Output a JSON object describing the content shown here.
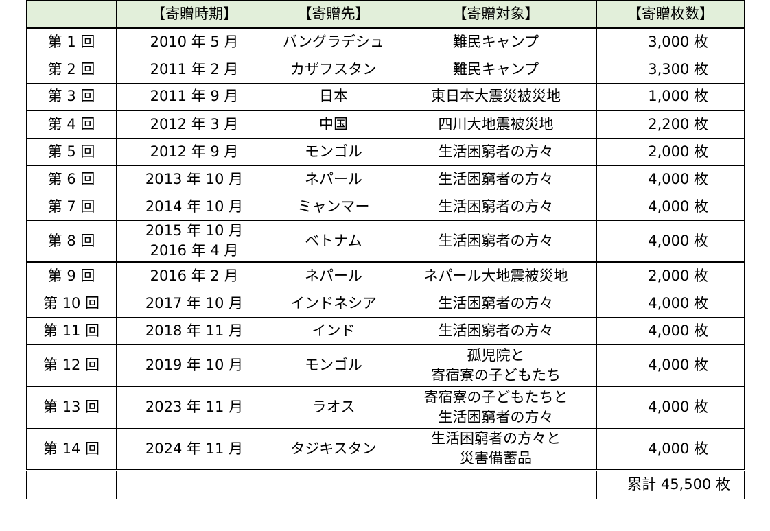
{
  "header": {
    "round": "",
    "period": "【寄贈時期】",
    "destination": "【寄贈先】",
    "target": "【寄贈対象】",
    "count": "【寄贈枚数】"
  },
  "rows": [
    {
      "round": "第 1 回",
      "period": [
        "2010 年  5 月"
      ],
      "destination": "バングラデシュ",
      "target": [
        "難民キャンプ"
      ],
      "count": "3,000 枚"
    },
    {
      "round": "第 2 回",
      "period": [
        "2011 年  2 月"
      ],
      "destination": "カザフスタン",
      "target": [
        "難民キャンプ"
      ],
      "count": "3,300 枚"
    },
    {
      "round": "第 3 回",
      "period": [
        "2011 年  9 月"
      ],
      "destination": "日本",
      "target": [
        "東日本大震災被災地"
      ],
      "count": "1,000 枚"
    },
    {
      "round": "第 4 回",
      "period": [
        "2012 年  3 月"
      ],
      "destination": "中国",
      "target": [
        "四川大地震被災地"
      ],
      "count": "2,200 枚"
    },
    {
      "round": "第 5 回",
      "period": [
        "2012 年  9 月"
      ],
      "destination": "モンゴル",
      "target": [
        "生活困窮者の方々"
      ],
      "count": "2,000 枚"
    },
    {
      "round": "第 6 回",
      "period": [
        "2013 年 10 月"
      ],
      "destination": "ネパール",
      "target": [
        "生活困窮者の方々"
      ],
      "count": "4,000 枚"
    },
    {
      "round": "第 7 回",
      "period": [
        "2014 年 10 月"
      ],
      "destination": "ミャンマー",
      "target": [
        "生活困窮者の方々"
      ],
      "count": "4,000 枚"
    },
    {
      "round": "第 8 回",
      "period": [
        "2015 年 10 月",
        "2016 年  4 月"
      ],
      "destination": "ベトナム",
      "target": [
        "生活困窮者の方々"
      ],
      "count": "4,000 枚"
    },
    {
      "round": "第 9 回",
      "period": [
        "2016 年  2 月"
      ],
      "destination": "ネパール",
      "target": [
        "ネパール大地震被災地"
      ],
      "count": "2,000 枚"
    },
    {
      "round": "第 10 回",
      "period": [
        "2017 年 10 月"
      ],
      "destination": "インドネシア",
      "target": [
        "生活困窮者の方々"
      ],
      "count": "4,000 枚"
    },
    {
      "round": "第 11 回",
      "period": [
        "2018 年 11 月"
      ],
      "destination": "インド",
      "target": [
        "生活困窮者の方々"
      ],
      "count": "4,000 枚"
    },
    {
      "round": "第 12 回",
      "period": [
        "2019 年 10 月"
      ],
      "destination": "モンゴル",
      "target": [
        "孤児院と",
        "寄宿寮の子どもたち"
      ],
      "count": "4,000 枚"
    },
    {
      "round": "第 13 回",
      "period": [
        "2023 年 11 月"
      ],
      "destination": "ラオス",
      "target": [
        "寄宿寮の子どもたちと",
        "生活困窮者の方々"
      ],
      "count": "4,000 枚"
    },
    {
      "round": "第 14 回",
      "period": [
        "2024 年 11 月"
      ],
      "destination": "タジキスタン",
      "target": [
        "生活困窮者の方々と",
        "災害備蓄品"
      ],
      "count": "4,000 枚"
    }
  ],
  "footer": {
    "total": "累計 45,500 枚"
  }
}
